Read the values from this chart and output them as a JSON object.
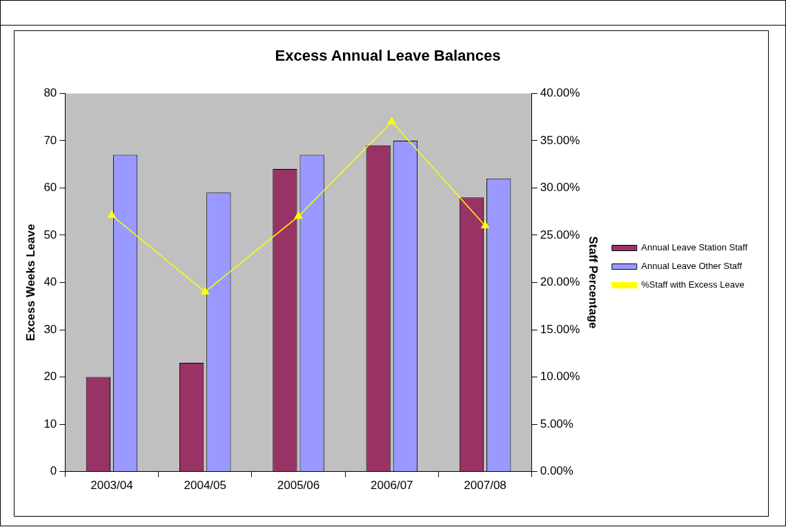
{
  "chart_data": {
    "type": "bar",
    "title": "Excess Annual Leave Balances",
    "ylabel": "Excess Weeks Leave",
    "y2label": "Staff Percentage",
    "categories": [
      "2003/04",
      "2004/05",
      "2005/06",
      "2006/07",
      "2007/08"
    ],
    "series": [
      {
        "name": "Annual Leave Station Staff",
        "color": "#993366",
        "values": [
          20,
          23,
          64,
          69,
          58
        ]
      },
      {
        "name": "Annual Leave Other Staff",
        "color": "#9999ff",
        "values": [
          67,
          59,
          67,
          70,
          62
        ]
      },
      {
        "name": "%Staff with Excess Leave",
        "type": "line",
        "axis": "y2",
        "color": "#ffff00",
        "marker": "triangle",
        "values": [
          27.1,
          19,
          27,
          37,
          26
        ]
      }
    ],
    "ylim": [
      0,
      80
    ],
    "yticks": [
      0,
      10,
      20,
      30,
      40,
      50,
      60,
      70,
      80
    ],
    "y2lim": [
      0,
      40
    ],
    "y2ticks": [
      {
        "value": 0,
        "label": "0.00%"
      },
      {
        "value": 5,
        "label": "5.00%"
      },
      {
        "value": 10,
        "label": "10.00%"
      },
      {
        "value": 15,
        "label": "15.00%"
      },
      {
        "value": 20,
        "label": "20.00%"
      },
      {
        "value": 25,
        "label": "25.00%"
      },
      {
        "value": 30,
        "label": "30.00%"
      },
      {
        "value": 35,
        "label": "35.00%"
      },
      {
        "value": 40,
        "label": "40.00%"
      }
    ],
    "grid": false,
    "legend": "right"
  }
}
